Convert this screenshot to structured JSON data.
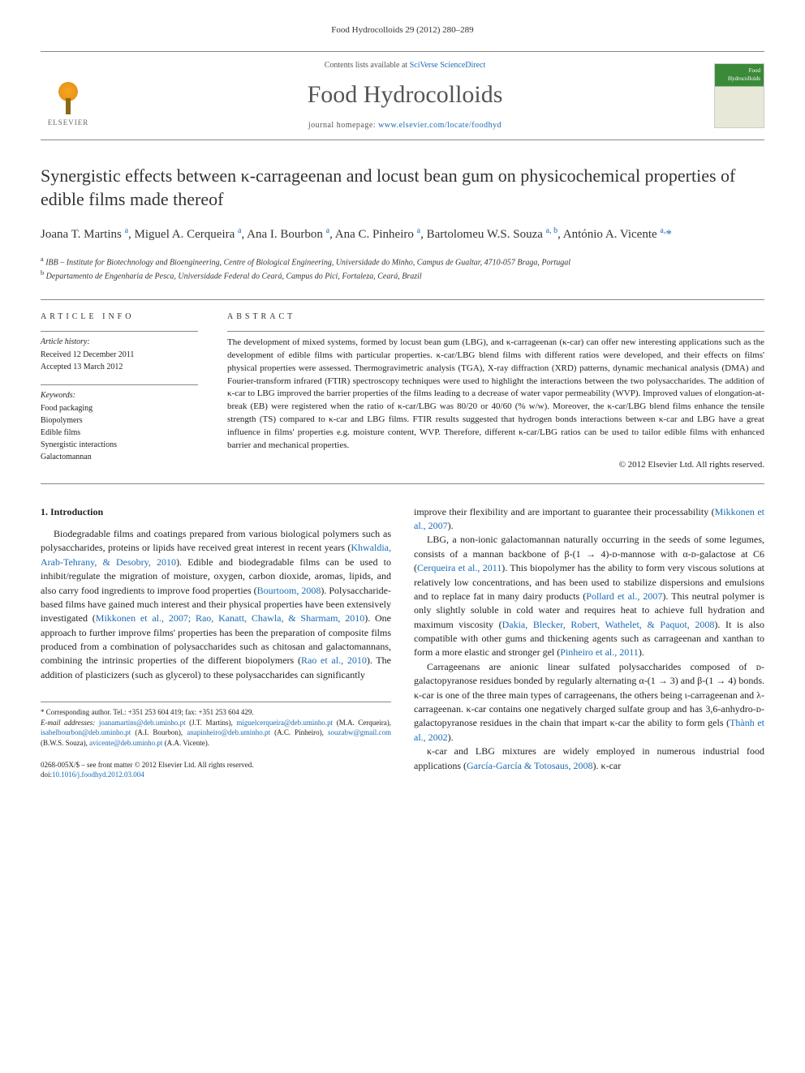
{
  "journal_ref": "Food Hydrocolloids 29 (2012) 280–289",
  "header": {
    "contents_prefix": "Contents lists available at ",
    "contents_link": "SciVerse ScienceDirect",
    "journal_name": "Food Hydrocolloids",
    "homepage_prefix": "journal homepage: ",
    "homepage_url": "www.elsevier.com/locate/foodhyd",
    "publisher": "ELSEVIER",
    "cover_label": "Food Hydrocolloids"
  },
  "title": "Synergistic effects between κ-carrageenan and locust bean gum on physicochemical properties of edible films made thereof",
  "authors_html": "Joana T. Martins <sup>a</sup>, Miguel A. Cerqueira <sup>a</sup>, Ana I. Bourbon <sup>a</sup>, Ana C. Pinheiro <sup>a</sup>, Bartolomeu W.S. Souza <sup>a, b</sup>, António A. Vicente <sup>a,</sup><span class='corr'>*</span>",
  "affiliations": {
    "a": "IBB – Institute for Biotechnology and Bioengineering, Centre of Biological Engineering, Universidade do Minho, Campus de Gualtar, 4710-057 Braga, Portugal",
    "b": "Departamento de Engenharia de Pesca, Universidade Federal do Ceará, Campus do Pici, Fortaleza, Ceará, Brazil"
  },
  "article_info": {
    "label": "ARTICLE INFO",
    "history_label": "Article history:",
    "received": "Received 12 December 2011",
    "accepted": "Accepted 13 March 2012",
    "keywords_label": "Keywords:",
    "keywords": [
      "Food packaging",
      "Biopolymers",
      "Edible films",
      "Synergistic interactions",
      "Galactomannan"
    ]
  },
  "abstract": {
    "label": "ABSTRACT",
    "text": "The development of mixed systems, formed by locust bean gum (LBG), and κ-carrageenan (κ-car) can offer new interesting applications such as the development of edible films with particular properties. κ-car/LBG blend films with different ratios were developed, and their effects on films' physical properties were assessed. Thermogravimetric analysis (TGA), X-ray diffraction (XRD) patterns, dynamic mechanical analysis (DMA) and Fourier-transform infrared (FTIR) spectroscopy techniques were used to highlight the interactions between the two polysaccharides. The addition of κ-car to LBG improved the barrier properties of the films leading to a decrease of water vapor permeability (WVP). Improved values of elongation-at-break (EB) were registered when the ratio of κ-car/LBG was 80/20 or 40/60 (% w/w). Moreover, the κ-car/LBG blend films enhance the tensile strength (TS) compared to κ-car and LBG films. FTIR results suggested that hydrogen bonds interactions between κ-car and LBG have a great influence in films' properties e.g. moisture content, WVP. Therefore, different κ-car/LBG ratios can be used to tailor edible films with enhanced barrier and mechanical properties.",
    "copyright": "© 2012 Elsevier Ltd. All rights reserved."
  },
  "intro_heading": "1. Introduction",
  "col1": {
    "p1_a": "Biodegradable films and coatings prepared from various biological polymers such as polysaccharides, proteins or lipids have received great interest in recent years (",
    "p1_c1": "Khwaldia, Arab-Tehrany, & Desobry, 2010",
    "p1_b": "). Edible and biodegradable films can be used to inhibit/regulate the migration of moisture, oxygen, carbon dioxide, aromas, lipids, and also carry food ingredients to improve food properties (",
    "p1_c2": "Bourtoom, 2008",
    "p1_c": "). Polysaccharide-based films have gained much interest and their physical properties have been extensively investigated (",
    "p1_c3": "Mikkonen et al., 2007; Rao, Kanatt, Chawla, & Sharmam, 2010",
    "p1_d": "). One approach to further improve films' properties has been the preparation of composite films produced from a combination of polysaccharides such as chitosan and galactomannans, combining the intrinsic properties of the different biopolymers (",
    "p1_c4": "Rao et al., 2010",
    "p1_e": "). The addition of plasticizers (such as glycerol) to these polysaccharides can significantly"
  },
  "col2": {
    "p1_a": "improve their flexibility and are important to guarantee their processability (",
    "p1_c1": "Mikkonen et al., 2007",
    "p1_b": ").",
    "p2_a": "LBG, a non-ionic galactomannan naturally occurring in the seeds of some legumes, consists of a mannan backbone of β-(1 → 4)-ᴅ-mannose with α-ᴅ-galactose at C6 (",
    "p2_c1": "Cerqueira et al., 2011",
    "p2_b": "). This biopolymer has the ability to form very viscous solutions at relatively low concentrations, and has been used to stabilize dispersions and emulsions and to replace fat in many dairy products (",
    "p2_c2": "Pollard et al., 2007",
    "p2_c": "). This neutral polymer is only slightly soluble in cold water and requires heat to achieve full hydration and maximum viscosity (",
    "p2_c3": "Dakia, Blecker, Robert, Wathelet, & Paquot, 2008",
    "p2_d": "). It is also compatible with other gums and thickening agents such as carrageenan and xanthan to form a more elastic and stronger gel (",
    "p2_c4": "Pinheiro et al., 2011",
    "p2_e": ").",
    "p3_a": "Carrageenans are anionic linear sulfated polysaccharides composed of ᴅ-galactopyranose residues bonded by regularly alternating α-(1 → 3) and β-(1 → 4) bonds. κ-car is one of the three main types of carrageenans, the others being ι-carrageenan and λ-carrageenan. κ-car contains one negatively charged sulfate group and has 3,6-anhydro-ᴅ-galactopyranose residues in the chain that impart κ-car the ability to form gels (",
    "p3_c1": "Thành et al., 2002",
    "p3_b": ").",
    "p4_a": "κ-car and LBG mixtures are widely employed in numerous industrial food applications (",
    "p4_c1": "García-García & Totosaus, 2008",
    "p4_b": "). κ-car"
  },
  "footer": {
    "corr_label": "* Corresponding author. Tel.: +351 253 604 419; fax: +351 253 604 429.",
    "email_label": "E-mail addresses:",
    "emails": [
      {
        "addr": "joanamartins@deb.uminho.pt",
        "who": "(J.T. Martins)"
      },
      {
        "addr": "miguelcerqueira@deb.uminho.pt",
        "who": "(M.A. Cerqueira)"
      },
      {
        "addr": "isabelbourbon@deb.uminho.pt",
        "who": "(A.I. Bourbon)"
      },
      {
        "addr": "anapinheiro@deb.uminho.pt",
        "who": "(A.C. Pinheiro)"
      },
      {
        "addr": "souzabw@gmail.com",
        "who": "(B.W.S. Souza)"
      },
      {
        "addr": "avicente@deb.uminho.pt",
        "who": "(A.A. Vicente)"
      }
    ]
  },
  "doi": {
    "line1": "0268-005X/$ – see front matter © 2012 Elsevier Ltd. All rights reserved.",
    "line2_prefix": "doi:",
    "line2_link": "10.1016/j.foodhyd.2012.03.004"
  }
}
